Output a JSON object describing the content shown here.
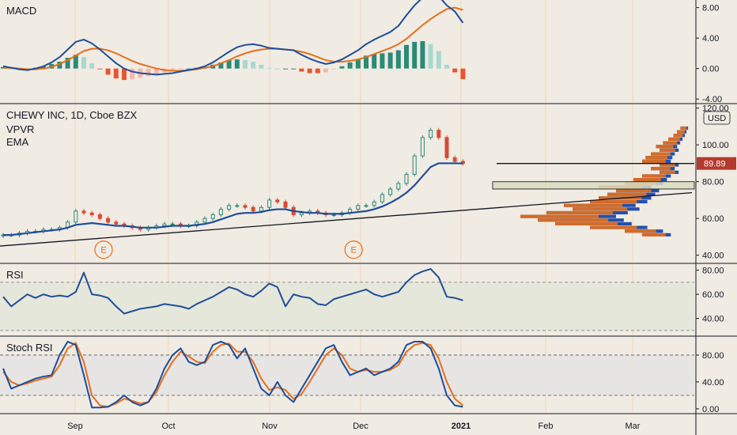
{
  "chart_data": [
    {
      "type": "line",
      "title": "MACD",
      "yticks": [
        "8.00",
        "4.00",
        "0.00",
        "-4.00"
      ],
      "ytick_values": [
        8,
        4,
        0,
        -4
      ],
      "ylim": [
        -4.5,
        9.0
      ],
      "series": [
        {
          "values": [
            0.3,
            0.1,
            -0.1,
            -0.2,
            0.0,
            0.3,
            0.8,
            1.5,
            2.5,
            3.5,
            3.8,
            3.3,
            2.5,
            1.6,
            0.7,
            0.0,
            -0.4,
            -0.6,
            -0.7,
            -0.8,
            -0.7,
            -0.6,
            -0.4,
            -0.2,
            0.0,
            0.3,
            0.8,
            1.5,
            2.2,
            2.8,
            3.1,
            3.2,
            3.0,
            2.7,
            2.6,
            2.5,
            2.4,
            1.8,
            1.3,
            0.9,
            0.6,
            0.8,
            1.2,
            1.8,
            2.4,
            3.2,
            3.8,
            4.3,
            4.8,
            5.6,
            7.0,
            8.3,
            9.3,
            9.7,
            9.5,
            8.3,
            7.5,
            6.0
          ]
        },
        {
          "values": [
            0.1,
            0.1,
            0.0,
            -0.1,
            -0.1,
            0.0,
            0.2,
            0.6,
            1.1,
            1.7,
            2.3,
            2.6,
            2.6,
            2.4,
            2.0,
            1.5,
            1.0,
            0.6,
            0.3,
            0.0,
            -0.2,
            -0.3,
            -0.3,
            -0.2,
            -0.1,
            0.1,
            0.3,
            0.7,
            1.1,
            1.6,
            2.0,
            2.3,
            2.5,
            2.6,
            2.6,
            2.5,
            2.4,
            2.2,
            1.9,
            1.5,
            1.1,
            0.9,
            0.9,
            1.0,
            1.2,
            1.5,
            1.9,
            2.3,
            2.7,
            3.2,
            3.9,
            4.8,
            5.7,
            6.5,
            7.2,
            7.8,
            8.0,
            7.7
          ]
        }
      ],
      "histogram": [
        0.2,
        0.0,
        -0.1,
        -0.1,
        0.1,
        0.3,
        0.6,
        0.9,
        1.4,
        1.8,
        1.5,
        0.7,
        -0.1,
        -0.8,
        -1.3,
        -1.5,
        -1.4,
        -1.2,
        -1.0,
        -0.8,
        -0.5,
        -0.3,
        -0.1,
        0.0,
        0.1,
        0.2,
        0.5,
        0.8,
        1.1,
        1.2,
        1.1,
        0.9,
        0.5,
        0.1,
        0.0,
        0.0,
        0.0,
        -0.4,
        -0.6,
        -0.6,
        -0.5,
        -0.1,
        0.3,
        0.8,
        1.2,
        1.7,
        1.9,
        2.0,
        2.1,
        2.4,
        3.1,
        3.5,
        3.6,
        3.2,
        2.3,
        0.5,
        -0.5,
        -1.4
      ]
    },
    {
      "type": "candlestick",
      "title": "CHEWY INC, 1D, Cboe BZX",
      "indicators": [
        "VPVR",
        "EMA"
      ],
      "unit": "USD",
      "last_price": "89.89",
      "yticks": [
        "120.00",
        "100.00",
        "80.00",
        "60.00",
        "40.00"
      ],
      "ytick_values": [
        120,
        100,
        80,
        60,
        40
      ],
      "ylim": [
        36,
        122
      ],
      "earnings_marker": "E",
      "earnings_dates_index": [
        10,
        41
      ],
      "close": [
        51,
        51,
        52,
        53,
        53,
        54,
        54,
        55,
        58,
        64,
        63,
        62,
        60,
        58,
        57,
        56,
        55,
        54,
        55,
        56,
        57,
        57,
        56,
        56,
        58,
        60,
        62,
        65,
        67,
        67,
        66,
        64,
        66,
        70,
        69,
        66,
        62,
        63,
        64,
        63,
        62,
        62,
        63,
        65,
        67,
        67,
        69,
        73,
        76,
        79,
        84,
        94,
        104,
        108,
        104,
        93,
        91,
        89.89
      ],
      "ema": [
        51,
        51,
        51.5,
        52,
        52.5,
        53,
        53.5,
        54,
        55,
        56.5,
        57,
        57.5,
        57,
        56.5,
        56,
        56,
        55.5,
        55,
        55,
        55,
        55.5,
        56,
        56,
        56,
        56.5,
        57,
        58,
        59.5,
        61,
        62.5,
        63,
        63,
        63.5,
        64.5,
        65,
        65,
        64,
        63.5,
        63,
        63,
        62.5,
        62.5,
        62.5,
        63,
        63.5,
        64,
        65,
        66.5,
        68.5,
        71,
        74,
        78,
        83,
        88,
        90,
        90,
        90,
        89.89
      ],
      "vpvr_levels": [
        50,
        52,
        54,
        56,
        58,
        60,
        62,
        64,
        66,
        68,
        70,
        72,
        74,
        76,
        78,
        80,
        82,
        84,
        86,
        88,
        90,
        92,
        94,
        96,
        98,
        100,
        102,
        104,
        106,
        108
      ],
      "vpvr_volume": [
        0.3,
        0.4,
        0.6,
        0.8,
        0.9,
        1.0,
        0.85,
        0.7,
        0.75,
        0.6,
        0.55,
        0.5,
        0.45,
        0.55,
        0.4,
        0.35,
        0.3,
        0.2,
        0.25,
        0.2,
        0.3,
        0.28,
        0.25,
        0.2,
        0.22,
        0.18,
        0.15,
        0.12,
        0.1,
        0.08
      ]
    },
    {
      "type": "line",
      "title": "RSI",
      "yticks": [
        "80.00",
        "60.00",
        "40.00"
      ],
      "ytick_values": [
        80,
        60,
        40
      ],
      "ylim": [
        26,
        85
      ],
      "band": [
        30,
        70
      ],
      "series": [
        {
          "values": [
            58,
            50,
            55,
            60,
            57,
            60,
            58,
            59,
            58,
            62,
            78,
            60,
            59,
            57,
            50,
            44,
            46,
            48,
            49,
            50,
            52,
            51,
            50,
            48,
            52,
            55,
            58,
            62,
            66,
            64,
            60,
            58,
            63,
            69,
            66,
            50,
            60,
            58,
            57,
            52,
            51,
            56,
            58,
            60,
            62,
            64,
            60,
            58,
            60,
            62,
            70,
            76,
            79,
            81,
            74,
            58,
            57,
            55
          ]
        }
      ]
    },
    {
      "type": "line",
      "title": "Stoch RSI",
      "yticks": [
        "80.00",
        "40.00",
        "0.00"
      ],
      "ytick_values": [
        80,
        40,
        0
      ],
      "ylim": [
        -6,
        107
      ],
      "band": [
        20,
        80
      ],
      "series": [
        {
          "values": [
            60,
            30,
            35,
            40,
            45,
            48,
            50,
            80,
            100,
            95,
            50,
            2,
            2,
            3,
            10,
            20,
            10,
            5,
            10,
            30,
            60,
            80,
            90,
            70,
            65,
            70,
            95,
            100,
            95,
            75,
            90,
            60,
            30,
            20,
            40,
            20,
            10,
            30,
            50,
            70,
            90,
            95,
            70,
            50,
            55,
            60,
            50,
            55,
            60,
            70,
            95,
            100,
            100,
            90,
            60,
            20,
            5,
            3
          ]
        },
        {
          "values": [
            55,
            40,
            35,
            38,
            42,
            45,
            48,
            65,
            90,
            98,
            70,
            20,
            5,
            3,
            8,
            15,
            12,
            8,
            10,
            25,
            50,
            70,
            85,
            78,
            70,
            68,
            85,
            95,
            97,
            85,
            85,
            70,
            45,
            28,
            32,
            28,
            15,
            22,
            40,
            60,
            80,
            90,
            80,
            60,
            55,
            58,
            55,
            55,
            58,
            65,
            85,
            95,
            98,
            95,
            75,
            40,
            15,
            5
          ]
        }
      ]
    }
  ],
  "x_axis": {
    "labels": [
      "Sep",
      "Oct",
      "Nov",
      "Dec",
      "2021",
      "Feb",
      "Mar"
    ]
  },
  "colors": {
    "blue": "#1f4e99",
    "orange": "#e66f1c",
    "up": "#2b8a78",
    "down": "#d64c33",
    "price_tag": "#b23a2e"
  }
}
